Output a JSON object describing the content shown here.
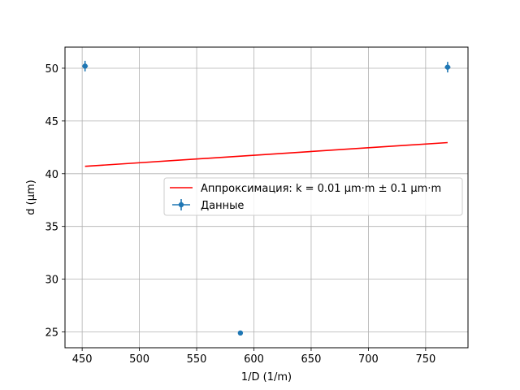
{
  "chart_data": {
    "type": "scatter",
    "xlabel": "1/D (1/m)",
    "ylabel": "d (µm)",
    "xlim": [
      435,
      787
    ],
    "ylim": [
      23.5,
      52
    ],
    "xticks": [
      450,
      500,
      550,
      600,
      650,
      700,
      750
    ],
    "yticks": [
      25,
      30,
      35,
      40,
      45,
      50
    ],
    "grid": true,
    "legend_position": "center-right",
    "series": [
      {
        "name": "Данные",
        "kind": "errorbar",
        "color": "#1f77b4",
        "x": [
          452.5,
          588.2,
          769.2
        ],
        "y": [
          50.2,
          24.9,
          50.1
        ],
        "xerr": [
          2.5,
          0,
          2.5
        ],
        "yerr": [
          0.5,
          0.15,
          0.5
        ]
      },
      {
        "name": "Аппроксимация: k = 0.01 µm·m ± 0.1 µm·m",
        "kind": "line",
        "color": "#ff0000",
        "x": [
          452.5,
          769.2
        ],
        "y": [
          40.7,
          42.95
        ]
      }
    ]
  }
}
